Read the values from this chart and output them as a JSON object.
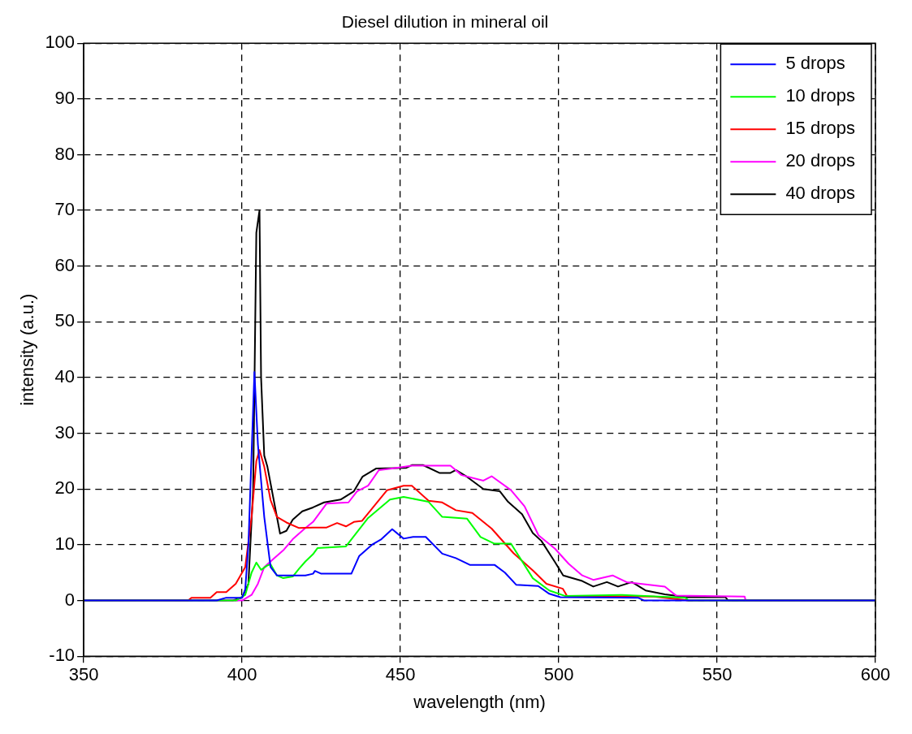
{
  "chart_data": {
    "type": "line",
    "title": "Diesel dilution in mineral oil",
    "xlabel": "wavelength (nm)",
    "ylabel": "intensity (a.u.)",
    "xlim": [
      350,
      600
    ],
    "ylim": [
      -10,
      100
    ],
    "xticks": [
      350,
      400,
      450,
      500,
      550,
      600
    ],
    "yticks": [
      -10,
      0,
      10,
      20,
      30,
      40,
      50,
      60,
      70,
      80,
      90,
      100
    ],
    "grid": true,
    "legend": "top right",
    "line_style": "solid",
    "marker": "none",
    "series": [
      {
        "name": "5 drops",
        "color": "#0000ff",
        "x": [
          350,
          392,
          395,
          400,
          401,
          402,
          403.9,
          405,
          407,
          409,
          411,
          415,
          420,
          422.4,
          423,
          425,
          434.5,
          437,
          441,
          444,
          447.4,
          451,
          454,
          458,
          463.2,
          467.5,
          471.9,
          479.7,
          483,
          486.6,
          493.5,
          497,
          500.5,
          525,
          527,
          600
        ],
        "values": [
          0,
          0,
          0.5,
          0.5,
          2,
          10,
          41,
          28,
          15,
          6,
          4.5,
          4.5,
          4.5,
          4.8,
          5.3,
          4.8,
          4.8,
          8,
          10,
          11,
          12.8,
          11.1,
          11.4,
          11.4,
          8.4,
          7.6,
          6.4,
          6.4,
          5,
          2.8,
          2.6,
          1.2,
          0.6,
          0.5,
          0,
          0
        ]
      },
      {
        "name": "10 drops",
        "color": "#00ff00",
        "x": [
          350,
          398,
          401,
          403,
          404.5,
          406,
          408,
          409,
          411,
          413,
          416,
          418,
          420,
          422.4,
          423.8,
          432.8,
          439.8,
          446.7,
          451,
          458.9,
          463.2,
          471,
          475.3,
          479.7,
          484.9,
          491.8,
          497,
          502.1,
          520,
          540,
          541,
          600
        ],
        "values": [
          0,
          0,
          1,
          5,
          6.8,
          5.5,
          6.3,
          6.5,
          4.5,
          4,
          4.3,
          5.7,
          7,
          8.3,
          9.4,
          9.7,
          14.8,
          18.1,
          18.6,
          17.7,
          15,
          14.7,
          11.4,
          10.2,
          10.2,
          4,
          1.8,
          0.8,
          1,
          0.5,
          0,
          0
        ]
      },
      {
        "name": "15 drops",
        "color": "#ff0000",
        "x": [
          350,
          383,
          384,
          390,
          392,
          395,
          398,
          401,
          403,
          404.5,
          405.5,
          407,
          409,
          411,
          414,
          418,
          422.4,
          426.7,
          430,
          432.8,
          435.3,
          437.9,
          445.8,
          451,
          453.6,
          458.9,
          463.2,
          467.5,
          472.7,
          478.8,
          485.7,
          491.8,
          496.1,
          501.3,
          502.6,
          530,
          541,
          600
        ],
        "values": [
          0,
          0,
          0.5,
          0.5,
          1.5,
          1.5,
          3,
          6,
          15,
          25,
          27,
          24,
          18,
          15,
          14,
          13,
          13.1,
          13.1,
          13.9,
          13.3,
          14.1,
          14.3,
          19.8,
          20.6,
          20.6,
          17.9,
          17.6,
          16.2,
          15.7,
          12.9,
          8.5,
          5.4,
          3,
          2.1,
          0.8,
          0.7,
          0,
          0
        ]
      },
      {
        "name": "20 drops",
        "color": "#ff00ff",
        "x": [
          350,
          400,
          403,
          405,
          407,
          410,
          413,
          416,
          420,
          422.4,
          426.7,
          433.6,
          436.3,
          439.8,
          443.2,
          447.4,
          453.6,
          465.8,
          469.3,
          476.2,
          478.8,
          484.9,
          489.2,
          493.6,
          498.8,
          503.1,
          507.4,
          510.9,
          517,
          521.4,
          533.5,
          537,
          558.7,
          559,
          600
        ],
        "values": [
          0,
          0,
          1,
          3,
          6,
          7.5,
          9,
          11,
          13,
          14.1,
          17.4,
          17.6,
          19.6,
          20.6,
          23.4,
          23.7,
          24.2,
          24.2,
          22.5,
          21.5,
          22.3,
          19.8,
          16.9,
          11.7,
          9.3,
          6.6,
          4.5,
          3.7,
          4.5,
          3.3,
          2.5,
          0.9,
          0.7,
          0,
          0
        ]
      },
      {
        "name": "40 drops",
        "color": "#000000",
        "x": [
          350,
          397,
          400,
          402,
          403.5,
          404.5,
          405.5,
          406,
          407,
          408,
          410,
          412,
          414,
          416,
          419,
          422.4,
          425.9,
          431.1,
          435.3,
          438,
          442.4,
          451.9,
          453.6,
          457.1,
          462.3,
          465.8,
          467.5,
          471,
          476.2,
          481.4,
          484,
          488.4,
          491.8,
          494.5,
          498.8,
          501.4,
          507.4,
          510.9,
          515.2,
          518.7,
          523.1,
          527.4,
          533.5,
          540.5,
          552.6,
          553.5,
          600
        ],
        "values": [
          0,
          0,
          0.5,
          3,
          20,
          66,
          70,
          40,
          26,
          24,
          18,
          12,
          12.5,
          14.5,
          16,
          16.7,
          17.6,
          18.1,
          19.6,
          22.2,
          23.7,
          23.8,
          24.3,
          24.3,
          22.9,
          22.9,
          23.4,
          22.2,
          20,
          19.6,
          17.7,
          15.5,
          12.1,
          10.7,
          6.9,
          4.5,
          3.5,
          2.5,
          3.3,
          2.5,
          3.3,
          1.8,
          1.1,
          0.6,
          0.6,
          0,
          0
        ]
      }
    ]
  }
}
